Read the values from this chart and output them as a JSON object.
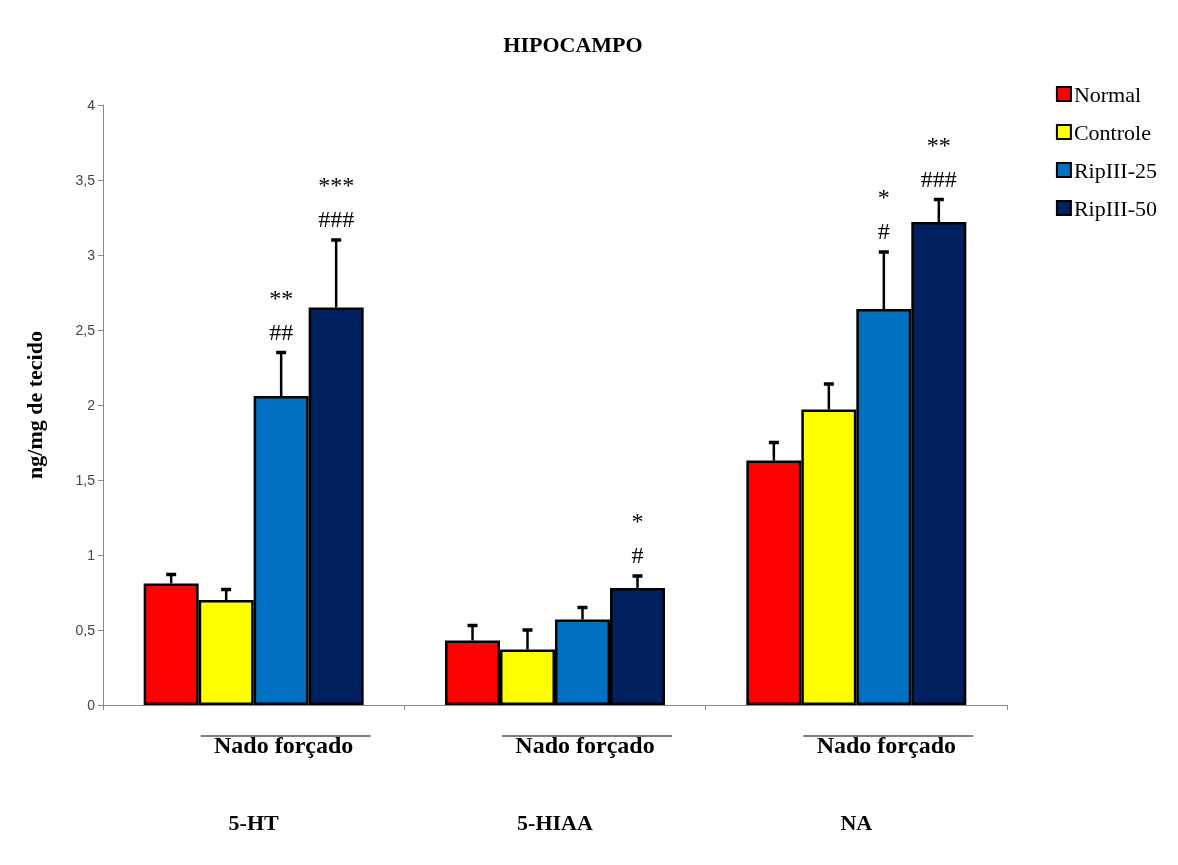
{
  "chart_data": {
    "type": "bar",
    "title": "HIPOCAMPO",
    "ylabel": "ng/mg de tecido",
    "categories": [
      "5-HT",
      "5-HIAA",
      "NA"
    ],
    "series": [
      {
        "name": "Normal",
        "color": "#ff0000",
        "values": [
          0.81,
          0.43,
          1.63
        ],
        "errors": [
          [
            0.81,
            0.87
          ],
          [
            0.43,
            0.53
          ],
          [
            1.63,
            1.75
          ]
        ]
      },
      {
        "name": "Controle",
        "color": "#ffff00",
        "values": [
          0.7,
          0.37,
          1.97
        ],
        "errors": [
          [
            0.7,
            0.77
          ],
          [
            0.37,
            0.5
          ],
          [
            1.97,
            2.14
          ]
        ]
      },
      {
        "name": "RipIII-25",
        "color": "#0070c0",
        "values": [
          2.06,
          0.57,
          2.64
        ],
        "errors": [
          [
            2.06,
            2.35
          ],
          [
            0.57,
            0.65
          ],
          [
            2.64,
            3.02
          ]
        ],
        "value_labels": [
          "**\n##",
          null,
          "*\n#"
        ]
      },
      {
        "name": "RipIII-50",
        "color": "#002060",
        "values": [
          2.65,
          0.78,
          3.22
        ],
        "errors": [
          [
            2.65,
            3.1
          ],
          [
            0.78,
            0.86
          ],
          [
            3.22,
            3.37
          ]
        ],
        "value_labels": [
          "***\n###",
          "*\n#",
          "**\n###"
        ]
      }
    ],
    "annotations": [
      "Nado forçado",
      "Nado forçado",
      "Nado forçado"
    ],
    "ylim": [
      0,
      4
    ],
    "yticks": [
      {
        "value": 0,
        "label": "0"
      },
      {
        "value": 0.5,
        "label": "0,5"
      },
      {
        "value": 1,
        "label": "1"
      },
      {
        "value": 1.5,
        "label": "1,5"
      },
      {
        "value": 2,
        "label": "2"
      },
      {
        "value": 2.5,
        "label": "2,5"
      },
      {
        "value": 3,
        "label": "3"
      },
      {
        "value": 3.5,
        "label": "3,5"
      },
      {
        "value": 4,
        "label": "4"
      }
    ],
    "grid": false,
    "legend": "top right"
  }
}
